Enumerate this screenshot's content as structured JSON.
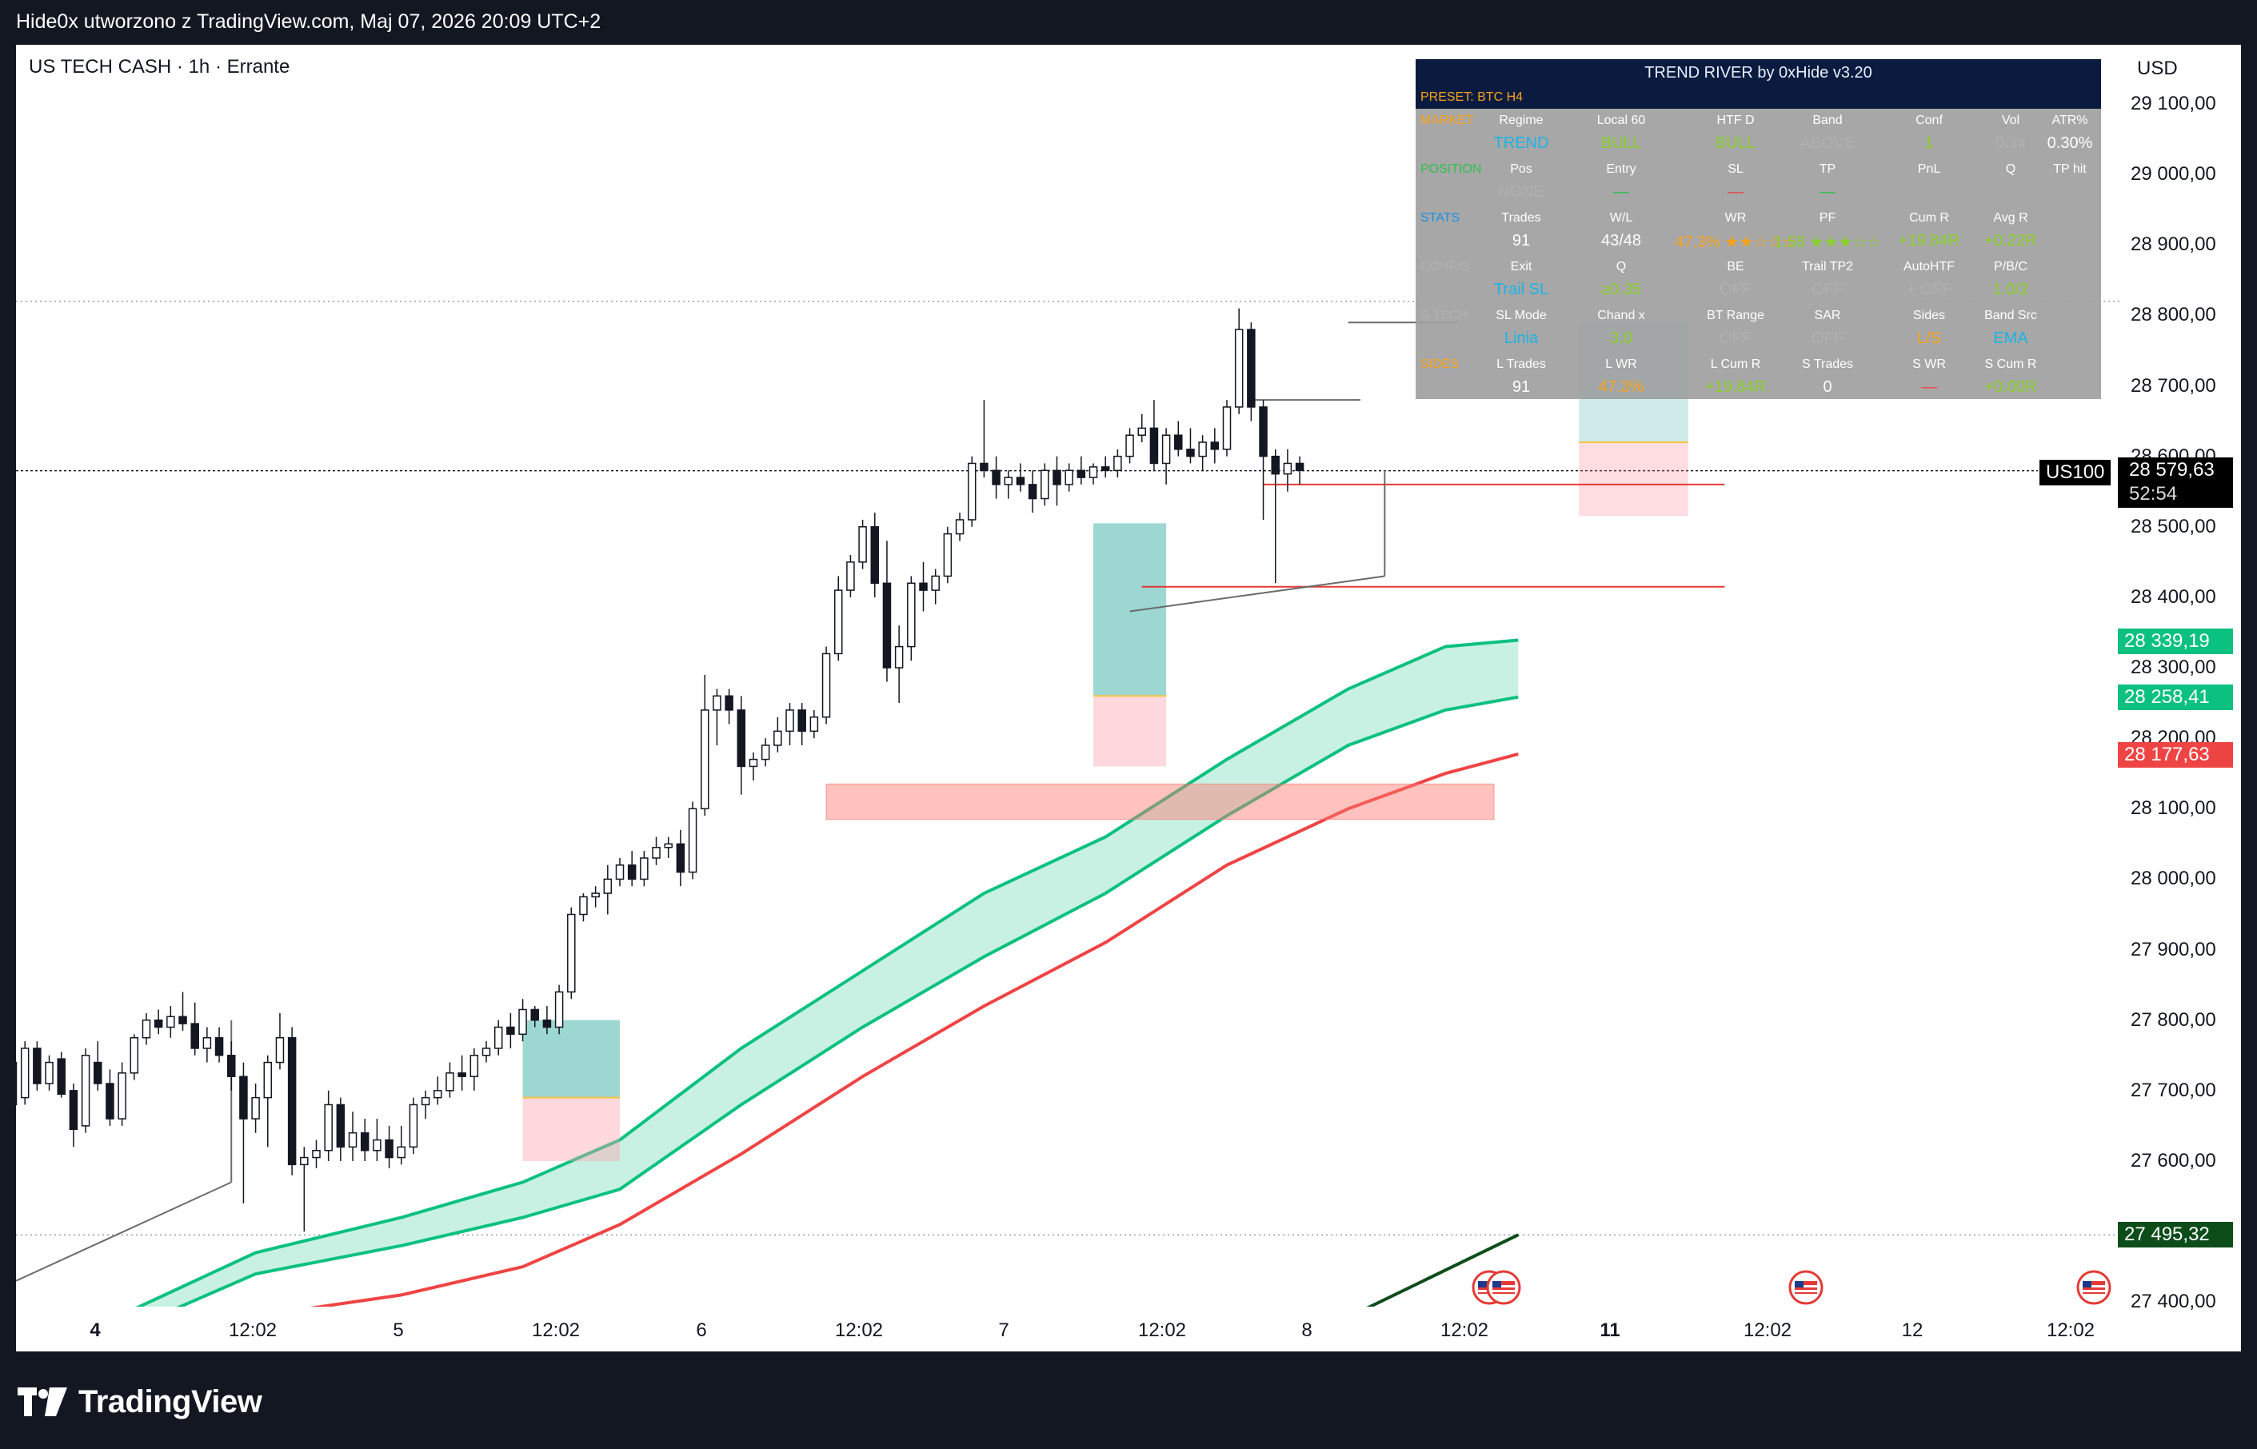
{
  "topbar": {
    "title": "Hide0x utworzono z TradingView.com, Maj 07, 2026 20:09 UTC+2"
  },
  "symbol": {
    "label": "US TECH CASH · 1h · Errante"
  },
  "price_axis": {
    "currency": "USD",
    "labels": [
      "29 100,00",
      "29 000,00",
      "28 900,00",
      "28 800,00",
      "28 700,00",
      "28 600,00",
      "28 500,00",
      "28 400,00",
      "28 300,00",
      "28 200,00",
      "28 100,00",
      "28 000,00",
      "27 900,00",
      "27 800,00",
      "27 700,00",
      "27 600,00",
      "27 400,00"
    ],
    "tick_values": [
      29100,
      29000,
      28900,
      28800,
      28700,
      28600,
      28500,
      28400,
      28300,
      28200,
      28100,
      28000,
      27900,
      27800,
      27700,
      27600,
      27400
    ]
  },
  "time_axis": {
    "labels": [
      "4",
      "12:02",
      "5",
      "12:02",
      "6",
      "12:02",
      "7",
      "12:02",
      "8",
      "12:02",
      "11",
      "12:02",
      "12",
      "12:02"
    ],
    "bold": [
      true,
      false,
      false,
      false,
      false,
      false,
      false,
      false,
      false,
      false,
      true,
      false,
      false,
      false
    ]
  },
  "badges": {
    "ticker": "US100",
    "last_price": "28 579,63",
    "countdown": "52:54",
    "upper_band": "28 339,19",
    "lower_band": "28 258,41",
    "red_line": "28 177,63",
    "dark_line": "27 495,32"
  },
  "colors": {
    "up_candle": "#ffffff",
    "down_candle": "#131722",
    "band_fill": "#c8f1e3",
    "band_line": "#0ac17f",
    "red_line": "#ef4444",
    "dark_green": "#0d4d1a",
    "table_bg": "#a0a0a0",
    "table_header": "#0b1b40"
  },
  "trend_table": {
    "title": "TREND RIVER by 0xHide v3.20",
    "preset": "PRESET: BTC H4",
    "sections": [
      {
        "label": "MARKET",
        "label_color": "#f7a21b",
        "headers": [
          "Regime",
          "Local 60",
          "HTF D",
          "Band",
          "Conf",
          "Vol",
          "ATR%"
        ],
        "values": [
          "TREND",
          "BULL",
          "BULL",
          "ABOVE",
          "1",
          "0.3x",
          "0.30%"
        ],
        "value_colors": [
          "#1bb3e6",
          "#8ad12a",
          "#8ad12a",
          "#b0b0b0",
          "#8ad12a",
          "#b0b0b0",
          "#ffffff"
        ]
      },
      {
        "label": "POSITION",
        "label_color": "#2fbf4f",
        "headers": [
          "Pos",
          "Entry",
          "SL",
          "TP",
          "PnL",
          "Q",
          "TP hit"
        ],
        "values": [
          "NONE",
          "—",
          "—",
          "—",
          "",
          "",
          ""
        ],
        "value_colors": [
          "#b0b0b0",
          "#2fbf4f",
          "#ef4444",
          "#2fbf4f",
          "#ffffff",
          "#ffffff",
          "#ffffff"
        ]
      },
      {
        "label": "STATS",
        "label_color": "#1b8fe6",
        "headers": [
          "Trades",
          "W/L",
          "WR",
          "PF",
          "Cum R",
          "Avg R",
          ""
        ],
        "values": [
          "91",
          "43/48",
          "47.3% ★★☆☆☆",
          "1.58 ★★★☆☆",
          "+19.84R",
          "+0.22R",
          ""
        ],
        "value_colors": [
          "#ffffff",
          "#ffffff",
          "#f7a21b",
          "#8ad12a",
          "#8ad12a",
          "#8ad12a",
          "#ffffff"
        ]
      },
      {
        "label": "CONFIG",
        "label_color": "#b0b0b0",
        "headers": [
          "Exit",
          "Q",
          "BE",
          "Trail TP2",
          "AutoHTF",
          "P/B/C",
          ""
        ],
        "values": [
          "Trail SL",
          "≥0.35",
          "OFF",
          "OFF",
          "+ OFF",
          "1.0/2",
          ""
        ],
        "value_colors": [
          "#1bb3e6",
          "#8ad12a",
          "#b0b0b0",
          "#b0b0b0",
          "#b0b0b0",
          "#8ad12a",
          "#ffffff"
        ]
      },
      {
        "label": "S.TECH",
        "label_color": "#b0b0b0",
        "headers": [
          "SL Mode",
          "Chand x",
          "BT Range",
          "SAR",
          "Sides",
          "Band Src",
          ""
        ],
        "values": [
          "Linia",
          "3.0",
          "OFF",
          "OFF",
          "L/S",
          "EMA",
          ""
        ],
        "value_colors": [
          "#1bb3e6",
          "#8ad12a",
          "#b0b0b0",
          "#b0b0b0",
          "#f7a21b",
          "#1bb3e6",
          "#ffffff"
        ]
      },
      {
        "label": "SIDES",
        "label_color": "#f7a21b",
        "headers": [
          "L Trades",
          "L WR",
          "L Cum R",
          "S Trades",
          "S WR",
          "S Cum R",
          ""
        ],
        "values": [
          "91",
          "47.3%",
          "+19.84R",
          "0",
          "—",
          "+0.00R",
          ""
        ],
        "value_colors": [
          "#ffffff",
          "#f7a21b",
          "#8ad12a",
          "#ffffff",
          "#ef4444",
          "#8ad12a",
          "#ffffff"
        ]
      }
    ]
  },
  "chart_data": {
    "type": "candlestick",
    "symbol": "US TECH CASH",
    "interval": "1h",
    "x_index_range": [
      0,
      124
    ],
    "ylim": [
      27370,
      29160
    ],
    "candles": [
      [
        27740,
        27745,
        27660,
        27680
      ],
      [
        27690,
        27770,
        27680,
        27760
      ],
      [
        27760,
        27770,
        27700,
        27710
      ],
      [
        27710,
        27750,
        27700,
        27740
      ],
      [
        27745,
        27755,
        27690,
        27695
      ],
      [
        27700,
        27710,
        27620,
        27645
      ],
      [
        27650,
        27760,
        27640,
        27750
      ],
      [
        27740,
        27770,
        27700,
        27710
      ],
      [
        27710,
        27730,
        27650,
        27660
      ],
      [
        27660,
        27740,
        27650,
        27725
      ],
      [
        27725,
        27780,
        27715,
        27775
      ],
      [
        27775,
        27810,
        27765,
        27800
      ],
      [
        27800,
        27815,
        27780,
        27790
      ],
      [
        27790,
        27820,
        27775,
        27805
      ],
      [
        27805,
        27840,
        27785,
        27795
      ],
      [
        27795,
        27825,
        27750,
        27760
      ],
      [
        27760,
        27790,
        27740,
        27775
      ],
      [
        27775,
        27790,
        27740,
        27750
      ],
      [
        27750,
        27770,
        27700,
        27720
      ],
      [
        27720,
        27740,
        27540,
        27660
      ],
      [
        27660,
        27710,
        27640,
        27690
      ],
      [
        27690,
        27750,
        27620,
        27740
      ],
      [
        27740,
        27810,
        27730,
        27775
      ],
      [
        27775,
        27790,
        27580,
        27595
      ],
      [
        27595,
        27620,
        27500,
        27605
      ],
      [
        27605,
        27630,
        27590,
        27615
      ],
      [
        27615,
        27700,
        27600,
        27680
      ],
      [
        27680,
        27690,
        27600,
        27620
      ],
      [
        27620,
        27670,
        27600,
        27640
      ],
      [
        27640,
        27660,
        27600,
        27615
      ],
      [
        27615,
        27660,
        27600,
        27630
      ],
      [
        27630,
        27650,
        27590,
        27605
      ],
      [
        27605,
        27650,
        27595,
        27620
      ],
      [
        27620,
        27690,
        27610,
        27680
      ],
      [
        27680,
        27700,
        27660,
        27690
      ],
      [
        27690,
        27720,
        27680,
        27700
      ],
      [
        27700,
        27740,
        27690,
        27725
      ],
      [
        27725,
        27750,
        27700,
        27720
      ],
      [
        27720,
        27760,
        27700,
        27750
      ],
      [
        27750,
        27770,
        27740,
        27760
      ],
      [
        27760,
        27800,
        27750,
        27790
      ],
      [
        27790,
        27810,
        27760,
        27780
      ],
      [
        27780,
        27830,
        27770,
        27815
      ],
      [
        27815,
        27820,
        27790,
        27800
      ],
      [
        27800,
        27820,
        27780,
        27790
      ],
      [
        27790,
        27850,
        27780,
        27840
      ],
      [
        27840,
        27960,
        27830,
        27950
      ],
      [
        27950,
        27980,
        27940,
        27975
      ],
      [
        27975,
        27990,
        27960,
        27980
      ],
      [
        27980,
        28020,
        27950,
        28000
      ],
      [
        28000,
        28030,
        27990,
        28020
      ],
      [
        28020,
        28040,
        27990,
        28000
      ],
      [
        28000,
        28040,
        27990,
        28030
      ],
      [
        28030,
        28060,
        28020,
        28045
      ],
      [
        28045,
        28060,
        28030,
        28050
      ],
      [
        28050,
        28070,
        27990,
        28010
      ],
      [
        28010,
        28110,
        28000,
        28100
      ],
      [
        28100,
        28290,
        28090,
        28240
      ],
      [
        28240,
        28270,
        28190,
        28260
      ],
      [
        28260,
        28270,
        28220,
        28240
      ],
      [
        28240,
        28260,
        28120,
        28160
      ],
      [
        28160,
        28180,
        28140,
        28170
      ],
      [
        28170,
        28200,
        28160,
        28190
      ],
      [
        28190,
        28230,
        28180,
        28210
      ],
      [
        28210,
        28250,
        28190,
        28240
      ],
      [
        28240,
        28250,
        28190,
        28210
      ],
      [
        28210,
        28240,
        28200,
        28230
      ],
      [
        28230,
        28330,
        28220,
        28320
      ],
      [
        28320,
        28430,
        28310,
        28410
      ],
      [
        28410,
        28460,
        28400,
        28450
      ],
      [
        28450,
        28510,
        28440,
        28500
      ],
      [
        28500,
        28520,
        28400,
        28420
      ],
      [
        28420,
        28480,
        28280,
        28300
      ],
      [
        28300,
        28360,
        28250,
        28330
      ],
      [
        28330,
        28430,
        28310,
        28420
      ],
      [
        28420,
        28450,
        28380,
        28410
      ],
      [
        28410,
        28440,
        28390,
        28430
      ],
      [
        28430,
        28500,
        28420,
        28490
      ],
      [
        28490,
        28520,
        28480,
        28510
      ],
      [
        28510,
        28600,
        28500,
        28590
      ],
      [
        28590,
        28680,
        28570,
        28580
      ],
      [
        28580,
        28600,
        28540,
        28560
      ],
      [
        28560,
        28580,
        28540,
        28570
      ],
      [
        28570,
        28590,
        28550,
        28560
      ],
      [
        28560,
        28580,
        28520,
        28540
      ],
      [
        28540,
        28590,
        28530,
        28580
      ],
      [
        28580,
        28600,
        28530,
        28560
      ],
      [
        28560,
        28590,
        28550,
        28580
      ],
      [
        28580,
        28600,
        28560,
        28570
      ],
      [
        28570,
        28590,
        28560,
        28585
      ],
      [
        28585,
        28600,
        28570,
        28580
      ],
      [
        28580,
        28610,
        28570,
        28600
      ],
      [
        28600,
        28640,
        28590,
        28630
      ],
      [
        28630,
        28660,
        28620,
        28640
      ],
      [
        28640,
        28680,
        28580,
        28590
      ],
      [
        28590,
        28640,
        28560,
        28630
      ],
      [
        28630,
        28650,
        28600,
        28610
      ],
      [
        28610,
        28640,
        28590,
        28600
      ],
      [
        28600,
        28630,
        28580,
        28620
      ],
      [
        28620,
        28640,
        28590,
        28610
      ],
      [
        28610,
        28680,
        28600,
        28670
      ],
      [
        28670,
        28810,
        28660,
        28780
      ],
      [
        28780,
        28790,
        28650,
        28670
      ],
      [
        28670,
        28680,
        28510,
        28600
      ],
      [
        28600,
        28610,
        28420,
        28575
      ],
      [
        28575,
        28610,
        28550,
        28590
      ],
      [
        28590,
        28600,
        28560,
        28580
      ]
    ],
    "band_upper": [
      [
        0,
        27310
      ],
      [
        20,
        27470
      ],
      [
        32,
        27520
      ],
      [
        42,
        27570
      ],
      [
        50,
        27630
      ],
      [
        60,
        27760
      ],
      [
        70,
        27870
      ],
      [
        80,
        27980
      ],
      [
        90,
        28060
      ],
      [
        100,
        28170
      ],
      [
        110,
        28270
      ],
      [
        118,
        28330
      ],
      [
        124,
        28339.19
      ]
    ],
    "band_lower": [
      [
        0,
        27290
      ],
      [
        20,
        27440
      ],
      [
        32,
        27480
      ],
      [
        42,
        27520
      ],
      [
        50,
        27560
      ],
      [
        60,
        27680
      ],
      [
        70,
        27790
      ],
      [
        80,
        27890
      ],
      [
        90,
        27980
      ],
      [
        100,
        28090
      ],
      [
        110,
        28190
      ],
      [
        118,
        28240
      ],
      [
        124,
        28258.41
      ]
    ],
    "red_ma": [
      [
        12,
        27370
      ],
      [
        20,
        27380
      ],
      [
        32,
        27410
      ],
      [
        42,
        27450
      ],
      [
        50,
        27510
      ],
      [
        60,
        27610
      ],
      [
        70,
        27720
      ],
      [
        80,
        27820
      ],
      [
        90,
        27910
      ],
      [
        100,
        28020
      ],
      [
        110,
        28100
      ],
      [
        118,
        28150
      ],
      [
        124,
        28177.63
      ]
    ],
    "dark_line": [
      [
        109,
        27370
      ],
      [
        124,
        27495.32
      ]
    ],
    "last_price": 28579.63,
    "horizontal_levels": [
      28820,
      27495.32
    ],
    "red_levels": [
      [
        103,
        141,
        28560
      ],
      [
        93,
        141,
        28415
      ]
    ],
    "tp_box": [
      129,
      138,
      28790,
      28620
    ],
    "sl_box": [
      129,
      138,
      28620,
      28515
    ],
    "entry_boxes": [
      [
        42,
        50,
        27800,
        27690,
        27600
      ],
      [
        89,
        95,
        28505,
        28260,
        28160
      ]
    ],
    "zone_box": [
      67,
      122,
      28135,
      28085
    ]
  }
}
